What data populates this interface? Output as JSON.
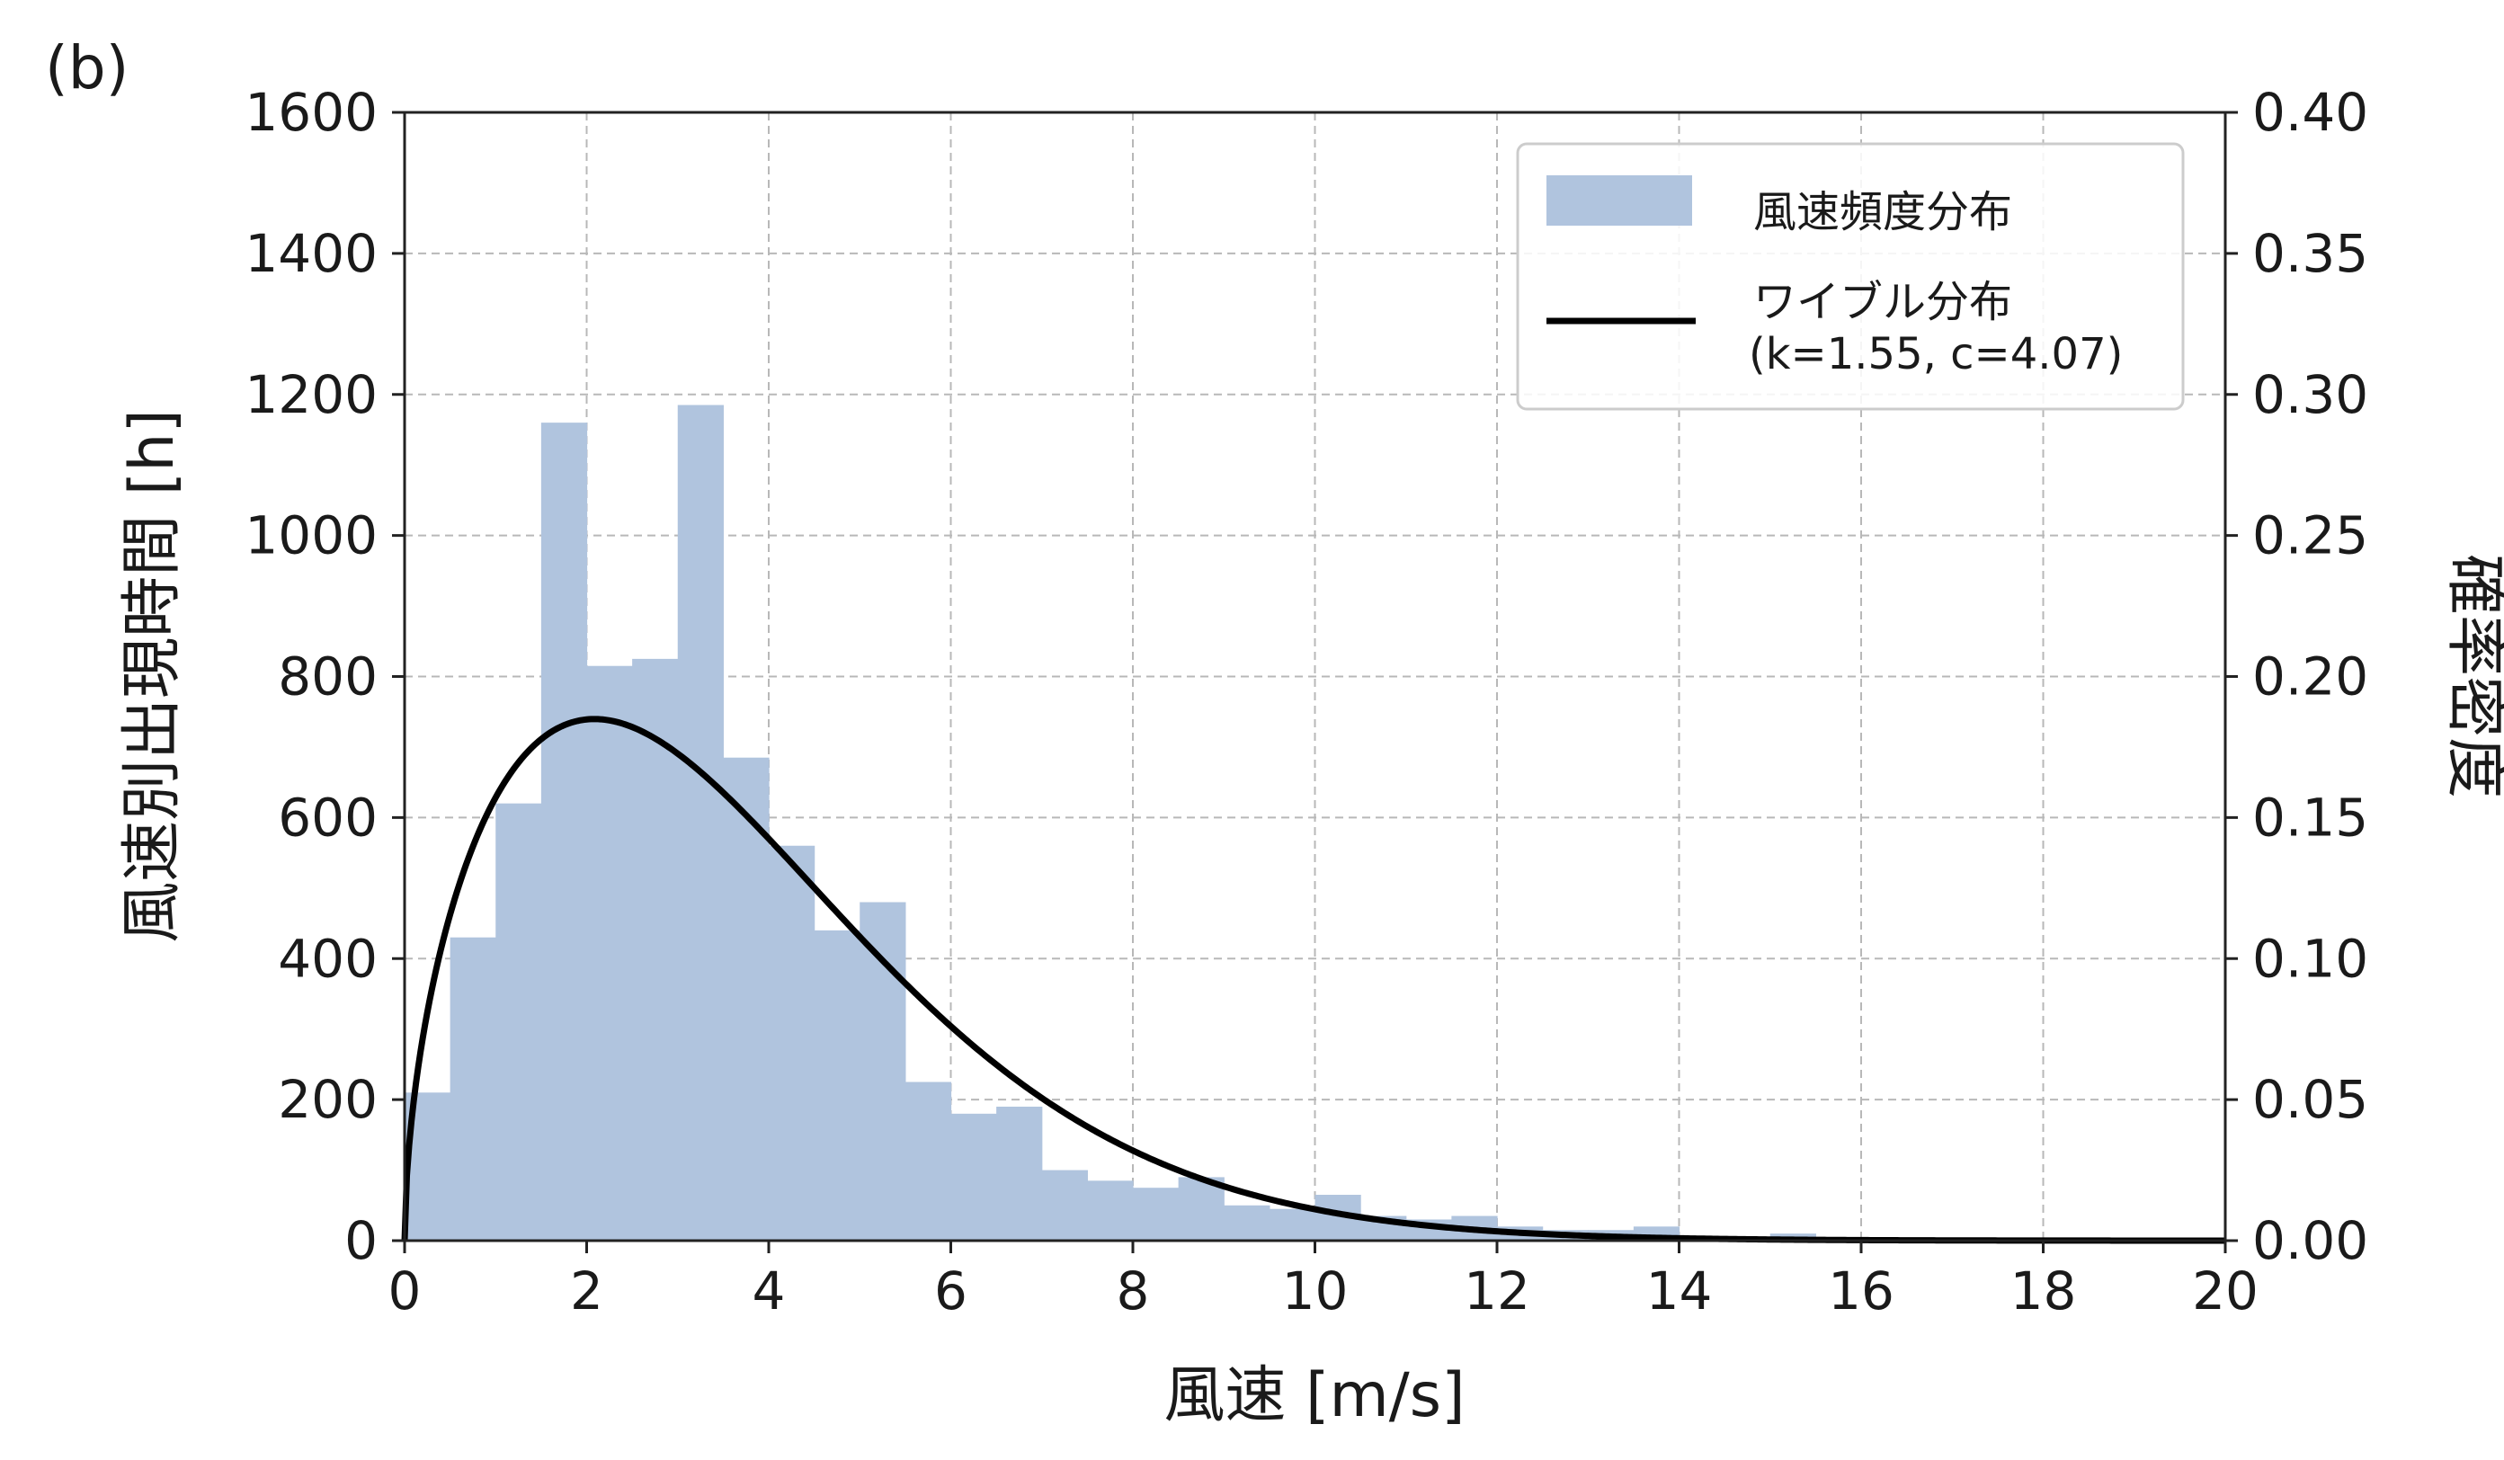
{
  "panel_label": "(b)",
  "chart_data": {
    "type": "bar",
    "xlabel": "風速 [m/s]",
    "ylabel_left": "風速別出現時間 [h]",
    "ylabel_right": "確率密度",
    "xlim": [
      0,
      20
    ],
    "ylim_left": [
      0,
      1600
    ],
    "ylim_right": [
      0,
      0.4
    ],
    "x_ticks": [
      "0",
      "2",
      "4",
      "6",
      "8",
      "10",
      "12",
      "14",
      "16",
      "18",
      "20"
    ],
    "y_left_ticks": [
      "0",
      "200",
      "400",
      "600",
      "800",
      "1000",
      "1200",
      "1400",
      "1600"
    ],
    "y_right_ticks": [
      "0.00",
      "0.05",
      "0.10",
      "0.15",
      "0.20",
      "0.25",
      "0.30",
      "0.35",
      "0.40"
    ],
    "grid": true,
    "legend_position": "top-right",
    "bar_color": "#b0c4de",
    "line_color": "#000000",
    "histogram": {
      "name": "風速頻度分布",
      "bin_width": 0.5,
      "bin_starts": [
        0,
        0.5,
        1,
        1.5,
        2,
        2.5,
        3,
        3.5,
        4,
        4.5,
        5,
        5.5,
        6,
        6.5,
        7,
        7.5,
        8,
        8.5,
        9,
        9.5,
        10,
        10.5,
        11,
        11.5,
        12,
        12.5,
        13,
        13.5,
        14,
        14.5,
        15,
        15.5
      ],
      "values": [
        210,
        430,
        620,
        1160,
        815,
        825,
        1185,
        685,
        560,
        440,
        480,
        225,
        180,
        190,
        100,
        85,
        75,
        90,
        50,
        45,
        65,
        35,
        30,
        35,
        20,
        15,
        15,
        20,
        5,
        5,
        10,
        3
      ]
    },
    "weibull": {
      "name_line1": "ワイブル分布",
      "name_line2": "(k=1.55, c=4.07)",
      "k": 1.55,
      "c": 4.07
    }
  }
}
